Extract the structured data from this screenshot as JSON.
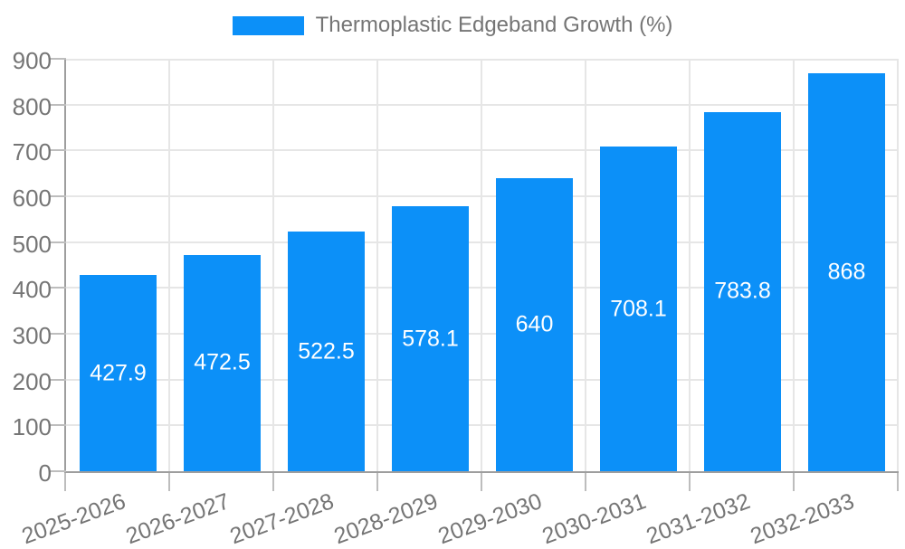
{
  "legend": {
    "label": "Thermoplastic Edgeband Growth (%)"
  },
  "chart_data": {
    "type": "bar",
    "title": "Thermoplastic Edgeband Growth (%)",
    "categories": [
      "2025-2026",
      "2026-2027",
      "2027-2028",
      "2028-2029",
      "2029-2030",
      "2030-2031",
      "2031-2032",
      "2032-2033"
    ],
    "values": [
      427.9,
      472.5,
      522.5,
      578.1,
      640,
      708.1,
      783.8,
      868
    ],
    "value_labels": [
      "427.9",
      "472.5",
      "522.5",
      "578.1",
      "640",
      "708.1",
      "783.8",
      "868"
    ],
    "xlabel": "",
    "ylabel": "",
    "ylim": [
      0,
      900
    ],
    "yticks": [
      0,
      100,
      200,
      300,
      400,
      500,
      600,
      700,
      800,
      900
    ],
    "grid": true,
    "legend_position": "top",
    "x_label_rotation_deg": -20,
    "bar_width_ratio": 0.74
  },
  "colors": {
    "bar": "#0c90f8",
    "grid": "#e6e6e6",
    "axis": "#9e9e9e",
    "tick": "#bdbdbd",
    "tick_label": "#757575",
    "value_label": "#ffffff",
    "legend_text": "#757575",
    "background": "#ffffff"
  }
}
